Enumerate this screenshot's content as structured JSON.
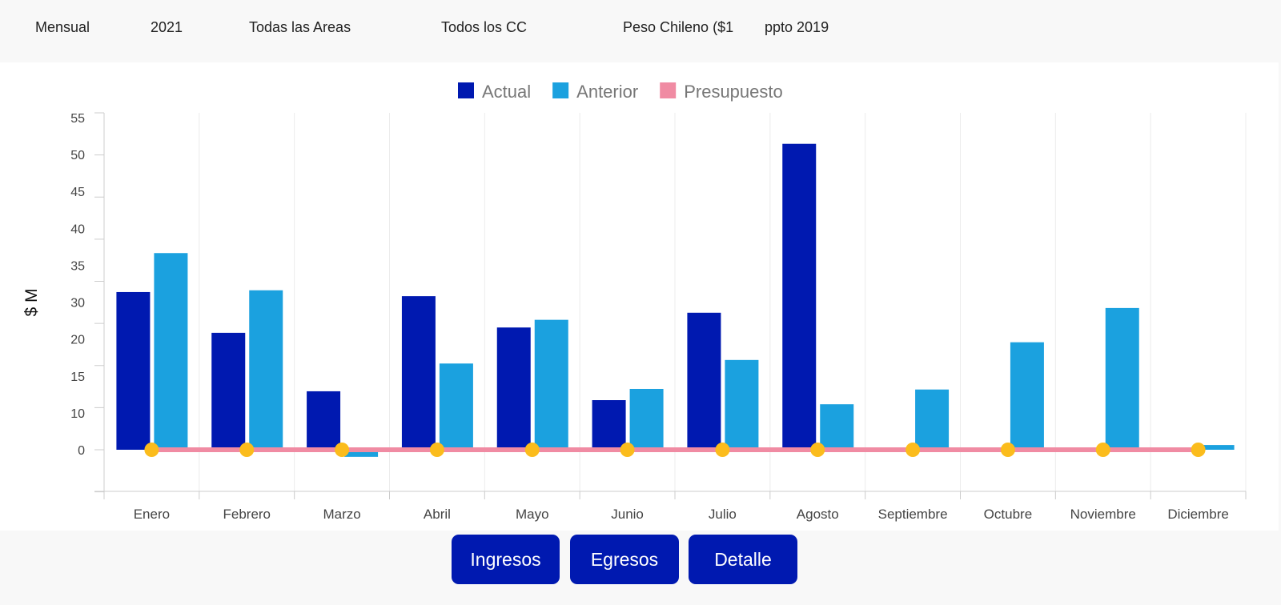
{
  "filters": {
    "period": "Mensual",
    "year": "2021",
    "area": "Todas las Areas",
    "cc": "Todos los CC",
    "currency": "Peso Chileno ($1",
    "budget": "ppto 2019"
  },
  "buttons": {
    "ingresos": "Ingresos",
    "egresos": "Egresos",
    "detalle": "Detalle"
  },
  "chart_data": {
    "type": "bar",
    "title": "",
    "xlabel": "",
    "ylabel": "$ M",
    "ylim": [
      -7,
      57
    ],
    "grid": "vertical",
    "legend_position": "top-center",
    "y_tick_labels": [
      "0",
      "10",
      "15",
      "20",
      "30",
      "35",
      "40",
      "45",
      "50",
      "55"
    ],
    "categories": [
      "Enero",
      "Febrero",
      "Marzo",
      "Abril",
      "Mayo",
      "Junio",
      "Julio",
      "Agosto",
      "Septiembre",
      "Octubre",
      "Noviembre",
      "Diciembre"
    ],
    "series": [
      {
        "name": "Actual",
        "type": "bar",
        "color": "#0019b0",
        "values": [
          26.7,
          19.8,
          9.9,
          26.0,
          20.7,
          8.4,
          23.2,
          51.8,
          0,
          0,
          0,
          0
        ]
      },
      {
        "name": "Anterior",
        "type": "bar",
        "color": "#1ba1df",
        "values": [
          33.3,
          27.0,
          -1.2,
          14.6,
          22.0,
          10.3,
          15.2,
          7.7,
          10.2,
          18.2,
          24.0,
          0.8
        ]
      },
      {
        "name": "Presupuesto",
        "type": "line",
        "color": "#f08ba3",
        "marker_color": "#fbbc1c",
        "values": [
          0,
          0,
          0,
          0,
          0,
          0,
          0,
          0,
          0,
          0,
          0,
          0
        ]
      }
    ]
  }
}
